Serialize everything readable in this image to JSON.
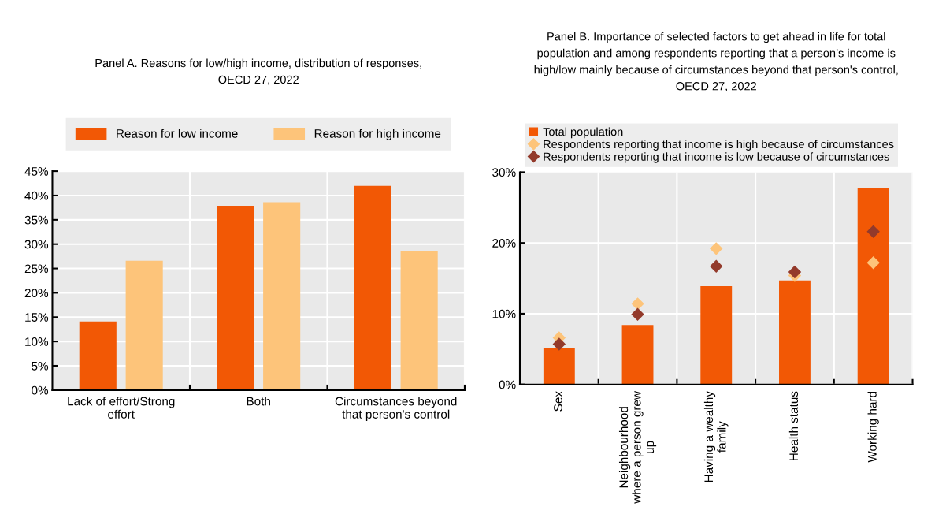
{
  "chart_data": [
    {
      "type": "bar",
      "title": "Panel A. Reasons for low/high income, distribution of responses,\nOECD 27, 2022",
      "categories": [
        "Lack of effort/Strong\neffort",
        "Both",
        "Circumstances beyond\nthat person's control"
      ],
      "series": [
        {
          "name": "Reason for low income",
          "color": "#f25805",
          "values": [
            14.1,
            37.9,
            42.0
          ]
        },
        {
          "name": "Reason for high income",
          "color": "#fdc47a",
          "values": [
            26.6,
            38.6,
            28.5
          ]
        }
      ],
      "ylim": [
        0,
        45
      ],
      "yticks": [
        {
          "value": 0,
          "label": "0%"
        },
        {
          "value": 5,
          "label": "5%"
        },
        {
          "value": 10,
          "label": "10%"
        },
        {
          "value": 15,
          "label": "15%"
        },
        {
          "value": 20,
          "label": "20%"
        },
        {
          "value": 25,
          "label": "25%"
        },
        {
          "value": 30,
          "label": "30%"
        },
        {
          "value": 35,
          "label": "35%"
        },
        {
          "value": 40,
          "label": "40%"
        },
        {
          "value": 45,
          "label": "45%"
        }
      ],
      "grid": true,
      "legend": "top"
    },
    {
      "type": "bar",
      "title": "Panel B. Importance of selected factors to get ahead in life for total\npopulation and among respondents reporting that a person’s income is\nhigh/low mainly because of circumstances beyond that person's control,\nOECD 27, 2022",
      "categories": [
        "Sex",
        "Neighbourhood\nwhere a person grew\nup",
        "Having a wealthy\nfamily",
        "Health status",
        "Working hard"
      ],
      "series": [
        {
          "name": "Total population",
          "color": "#f25805",
          "values": [
            5.2,
            8.4,
            13.9,
            14.7,
            27.7
          ]
        },
        {
          "name": "Respondents reporting that income is high because of circumstances",
          "type": "scatter",
          "color": "#fdc47a",
          "values": [
            6.6,
            11.4,
            19.2,
            15.4,
            17.2
          ]
        },
        {
          "name": "Respondents reporting that income is low because of circumstances",
          "type": "scatter",
          "color": "#933a2b",
          "values": [
            5.7,
            9.9,
            16.7,
            15.9,
            21.6
          ]
        }
      ],
      "marker": "diamond",
      "ylim": [
        0,
        30
      ],
      "yticks": [
        {
          "value": 0,
          "label": "0%"
        },
        {
          "value": 10,
          "label": "10%"
        },
        {
          "value": 20,
          "label": "20%"
        },
        {
          "value": 30,
          "label": "30%"
        }
      ],
      "grid": true,
      "legend": "top left"
    }
  ]
}
